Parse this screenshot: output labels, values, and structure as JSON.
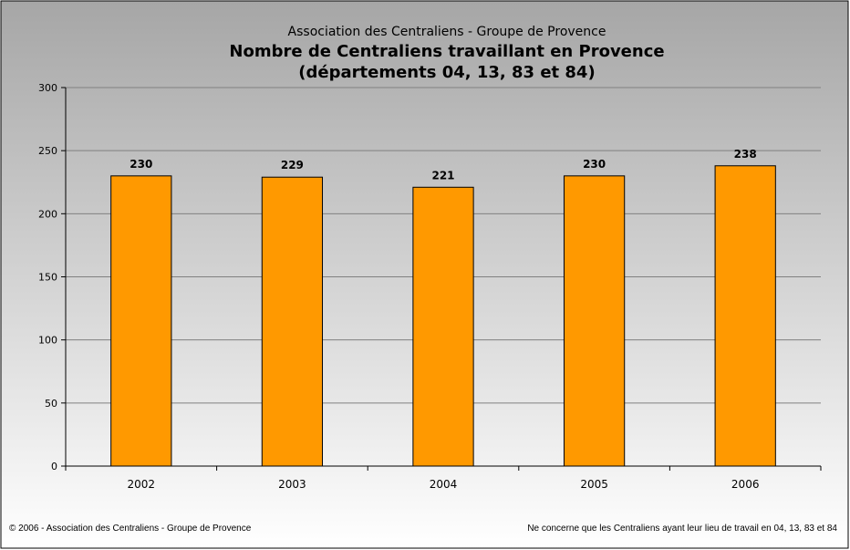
{
  "chart_data": {
    "type": "bar",
    "supertitle": "Association des Centraliens - Groupe de Provence",
    "title": "Nombre de Centraliens travaillant en Provence",
    "subtitle": "(départements 04, 13, 83 et 84)",
    "categories": [
      "2002",
      "2003",
      "2004",
      "2005",
      "2006"
    ],
    "values": [
      230,
      229,
      221,
      230,
      238
    ],
    "data_labels": [
      "230",
      "229",
      "221",
      "230",
      "238"
    ],
    "ylim": [
      0,
      300
    ],
    "yticks": [
      0,
      50,
      100,
      150,
      200,
      250,
      300
    ],
    "ytick_labels": [
      "0",
      "50",
      "100",
      "150",
      "200",
      "250",
      "300"
    ],
    "grid": true,
    "colors": {
      "bar_fill": "#ff9900",
      "bar_stroke": "#000000",
      "background_top": "#a6a6a6",
      "background_bottom": "#ffffff",
      "gridline": "#808080"
    }
  },
  "footer": {
    "left": "© 2006 - Association des Centraliens - Groupe de Provence",
    "right": "Ne concerne que les Centraliens ayant leur lieu de travail en 04, 13, 83 et 84"
  }
}
